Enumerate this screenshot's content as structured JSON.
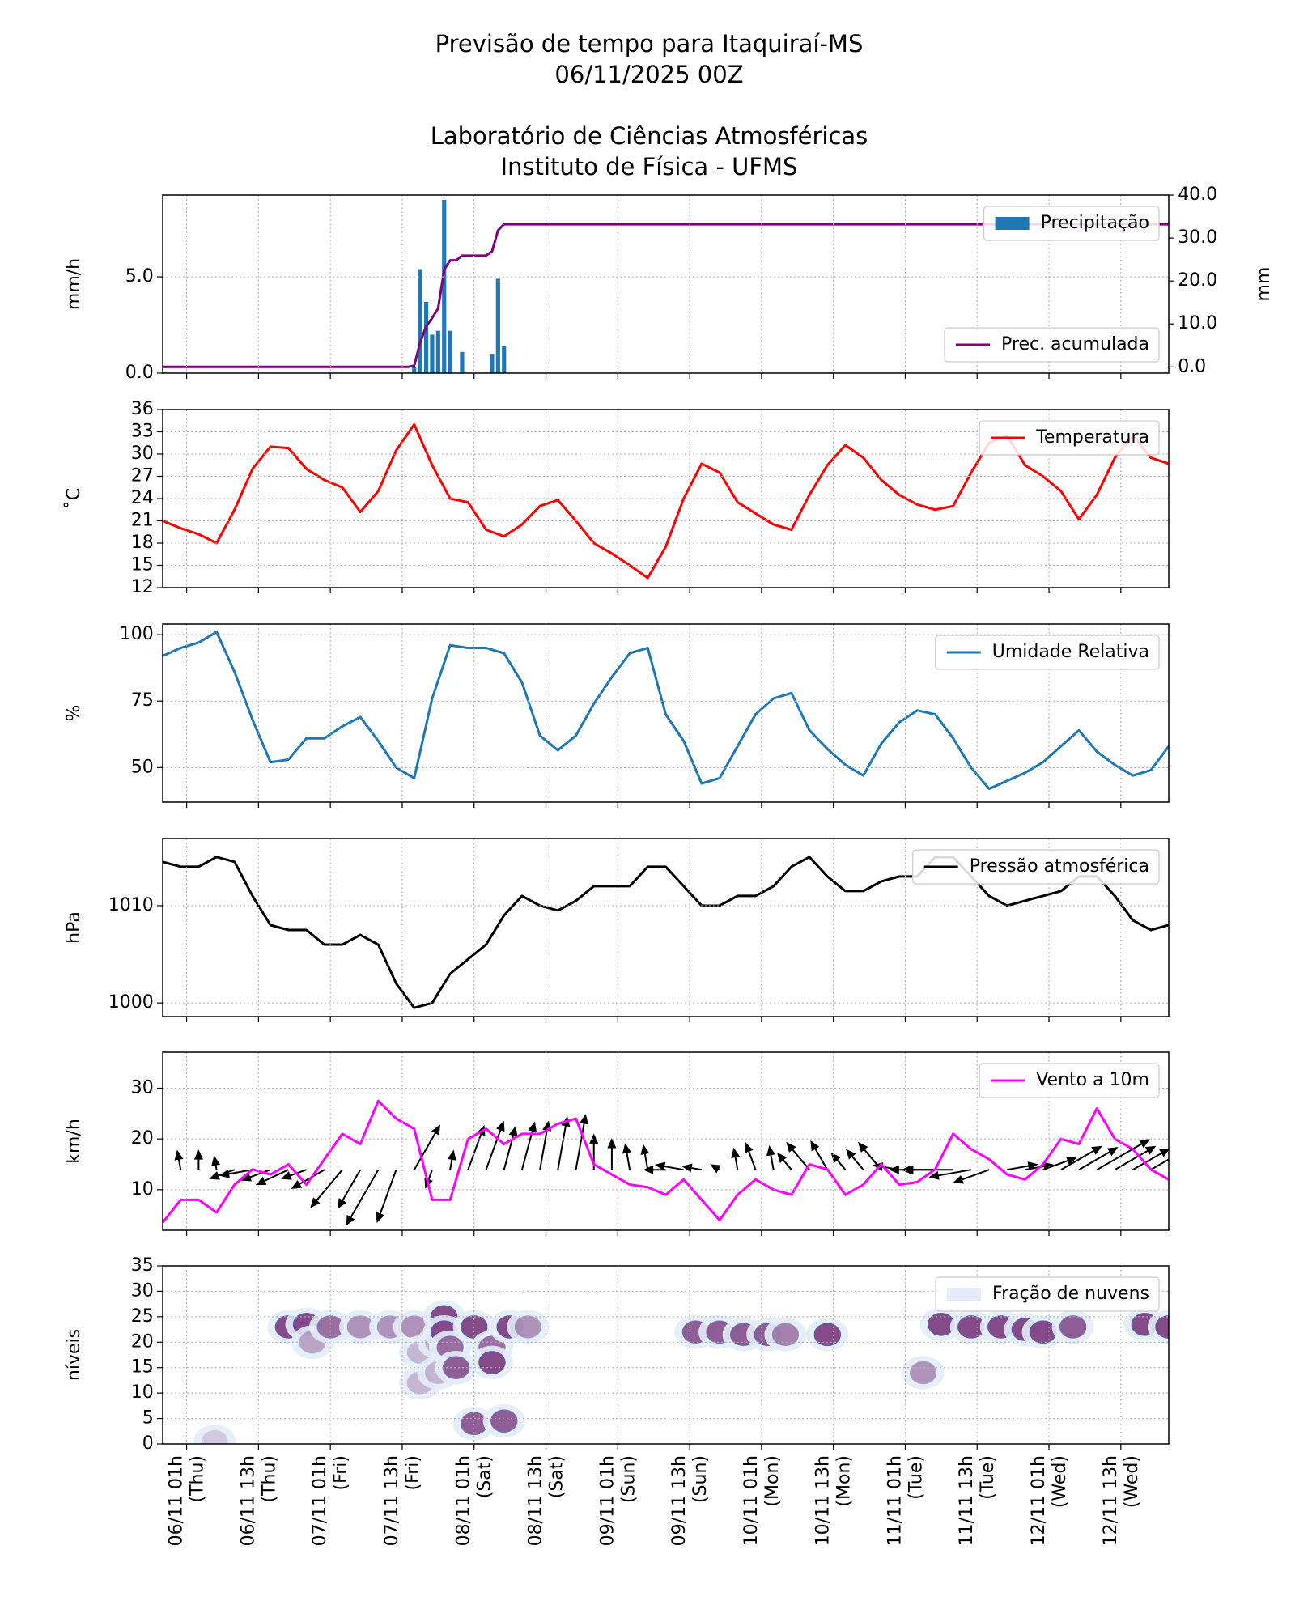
{
  "title": [
    "Previsão de tempo para Itaquiraí-MS",
    "06/11/2025 00Z",
    "Laboratório de Ciências Atmosféricas",
    "Instituto de Física - UFMS"
  ],
  "chart_data": [
    {
      "type": "combo",
      "ylabel": "mm/h",
      "y2label": "mm",
      "grid": true,
      "xlim": [
        0,
        168
      ],
      "xticks": [
        4,
        16,
        28,
        40,
        52,
        64,
        76,
        88,
        100,
        112,
        124,
        136,
        148,
        160
      ],
      "ylim": [
        0,
        9.25
      ],
      "yticks": [
        {
          "value": 0,
          "label": "0.0"
        },
        {
          "value": 5,
          "label": "5.0"
        }
      ],
      "y2lim": [
        -1.45,
        40
      ],
      "y2ticks": [
        {
          "value": 0,
          "label": "0.0"
        },
        {
          "value": 10,
          "label": "10.0"
        },
        {
          "value": 20,
          "label": "20.0"
        },
        {
          "value": 30,
          "label": "30.0"
        },
        {
          "value": 40,
          "label": "40.0"
        }
      ],
      "series": [
        {
          "name": "Precipitação",
          "type": "bar",
          "color": "#1f77b4",
          "legend": "upper right",
          "x": [
            42,
            43,
            44,
            45,
            46,
            47,
            48,
            50,
            55,
            56,
            57
          ],
          "values": [
            0.3,
            5.4,
            3.7,
            2.0,
            2.2,
            9.0,
            2.2,
            1.1,
            1.0,
            4.9,
            1.4
          ]
        },
        {
          "name": "Prec. acumulada",
          "type": "line",
          "axis": "y2",
          "color": "#800080",
          "legend": "lower right",
          "x": [
            0,
            41,
            42,
            43,
            44,
            45,
            46,
            47,
            48,
            49,
            50,
            53,
            54,
            55,
            56,
            57,
            168
          ],
          "values": [
            0,
            0,
            0.3,
            5.7,
            9.4,
            11.4,
            13.6,
            22.6,
            24.8,
            24.8,
            25.9,
            25.9,
            25.9,
            26.9,
            31.8,
            33.2,
            33.2
          ]
        }
      ]
    },
    {
      "type": "line",
      "ylabel": "˚C",
      "grid": true,
      "xlim": [
        0,
        168
      ],
      "xticks": [
        4,
        16,
        28,
        40,
        52,
        64,
        76,
        88,
        100,
        112,
        124,
        136,
        148,
        160
      ],
      "ylim": [
        12,
        36
      ],
      "yticks": [
        12,
        15,
        18,
        21,
        24,
        27,
        30,
        33,
        36
      ],
      "series": [
        {
          "name": "Temperatura",
          "type": "line",
          "color": "#ff0000",
          "legend": "upper right",
          "x": [
            0,
            3,
            6,
            9,
            12,
            15,
            18,
            21,
            24,
            27,
            30,
            33,
            36,
            39,
            42,
            45,
            48,
            51,
            54,
            57,
            60,
            63,
            66,
            69,
            72,
            75,
            78,
            81,
            84,
            87,
            90,
            93,
            96,
            99,
            102,
            105,
            108,
            111,
            114,
            117,
            120,
            123,
            126,
            129,
            132,
            135,
            138,
            141,
            144,
            147,
            150,
            153,
            156,
            159,
            162,
            165,
            168
          ],
          "values": [
            21,
            20,
            19.2,
            18,
            22.5,
            28,
            31,
            30.8,
            28,
            26.5,
            25.5,
            22.2,
            25,
            30.5,
            34,
            28.5,
            24,
            23.5,
            19.8,
            18.9,
            20.5,
            23,
            23.8,
            21,
            18,
            16.6,
            15,
            13.3,
            17.5,
            24,
            28.7,
            27.5,
            23.5,
            22,
            20.5,
            19.8,
            24.5,
            28.5,
            31.2,
            29.5,
            26.5,
            24.5,
            23.2,
            22.5,
            23,
            27.5,
            31.5,
            32.5,
            28.5,
            27,
            25,
            21.2,
            24.5,
            29.5,
            32.5,
            29.5,
            28.7
          ]
        }
      ]
    },
    {
      "type": "line",
      "ylabel": "%",
      "grid": true,
      "xlim": [
        0,
        168
      ],
      "xticks": [
        4,
        16,
        28,
        40,
        52,
        64,
        76,
        88,
        100,
        112,
        124,
        136,
        148,
        160
      ],
      "ylim": [
        37,
        104
      ],
      "yticks": [
        50,
        75,
        100
      ],
      "series": [
        {
          "name": "Umidade Relativa",
          "type": "line",
          "color": "#1f77b4",
          "legend": "upper right",
          "x": [
            0,
            3,
            6,
            9,
            12,
            15,
            18,
            21,
            24,
            27,
            30,
            33,
            36,
            39,
            42,
            45,
            48,
            51,
            54,
            57,
            60,
            63,
            66,
            69,
            72,
            75,
            78,
            81,
            84,
            87,
            90,
            93,
            96,
            99,
            102,
            105,
            108,
            111,
            114,
            117,
            120,
            123,
            126,
            129,
            132,
            135,
            138,
            141,
            144,
            147,
            150,
            153,
            156,
            159,
            162,
            165,
            168
          ],
          "values": [
            92,
            95,
            97,
            101,
            86,
            68,
            52,
            53,
            61,
            61,
            65.5,
            69,
            60,
            50,
            46,
            76,
            96,
            95,
            95,
            93,
            82,
            62,
            56.5,
            62,
            74,
            84,
            93,
            95,
            70,
            60,
            44,
            46,
            58,
            70,
            76,
            78,
            64,
            57,
            51,
            47,
            59,
            67,
            71.5,
            70,
            61,
            50,
            42,
            45,
            48,
            52,
            58,
            64,
            56,
            51,
            47,
            49,
            58
          ]
        }
      ]
    },
    {
      "type": "line",
      "ylabel": "hPa",
      "grid": true,
      "xlim": [
        0,
        168
      ],
      "xticks": [
        4,
        16,
        28,
        40,
        52,
        64,
        76,
        88,
        100,
        112,
        124,
        136,
        148,
        160
      ],
      "ylim": [
        998.6,
        1016.9
      ],
      "yticks": [
        1000,
        1010
      ],
      "series": [
        {
          "name": "Pressão atmosférica",
          "type": "line",
          "color": "#000000",
          "legend": "upper right",
          "x": [
            0,
            3,
            6,
            9,
            12,
            15,
            18,
            21,
            24,
            27,
            30,
            33,
            36,
            39,
            42,
            45,
            48,
            51,
            54,
            57,
            60,
            63,
            66,
            69,
            72,
            75,
            78,
            81,
            84,
            87,
            90,
            93,
            96,
            99,
            102,
            105,
            108,
            111,
            114,
            117,
            120,
            123,
            126,
            129,
            132,
            135,
            138,
            141,
            144,
            147,
            150,
            153,
            156,
            159,
            162,
            165,
            168
          ],
          "values": [
            1014.5,
            1014,
            1014,
            1015,
            1014.5,
            1011,
            1008,
            1007.5,
            1007.5,
            1006,
            1006,
            1007,
            1006,
            1002,
            999.5,
            1000,
            1003,
            1004.5,
            1006,
            1009,
            1011,
            1010,
            1009.5,
            1010.5,
            1012,
            1012,
            1012,
            1014,
            1014,
            1012,
            1010,
            1010,
            1011,
            1011,
            1012,
            1014,
            1015,
            1013,
            1011.5,
            1011.5,
            1012.5,
            1013,
            1013,
            1015,
            1015,
            1013,
            1011,
            1010,
            1010.5,
            1011,
            1011.5,
            1013,
            1013,
            1011,
            1008.5,
            1007.5,
            1008
          ]
        }
      ]
    },
    {
      "type": "quiver",
      "ylabel": "km/h",
      "grid": true,
      "xlim": [
        0,
        168
      ],
      "xticks": [
        4,
        16,
        28,
        40,
        52,
        64,
        76,
        88,
        100,
        112,
        124,
        136,
        148,
        160
      ],
      "ylim": [
        2,
        37.1
      ],
      "yticks": [
        10,
        20,
        30
      ],
      "series": [
        {
          "name": "Vento a 10m",
          "type": "line",
          "color": "#ff00ff",
          "arrow_color": "#000000",
          "legend": "upper right",
          "x": [
            0,
            3,
            6,
            9,
            12,
            15,
            18,
            21,
            24,
            27,
            30,
            33,
            36,
            39,
            42,
            45,
            48,
            51,
            54,
            57,
            60,
            63,
            66,
            69,
            72,
            75,
            78,
            81,
            84,
            87,
            90,
            93,
            96,
            99,
            102,
            105,
            108,
            111,
            114,
            117,
            120,
            123,
            126,
            129,
            132,
            135,
            138,
            141,
            144,
            147,
            150,
            153,
            156,
            159,
            162,
            165,
            168
          ],
          "values": [
            3.5,
            8,
            8,
            5.5,
            11,
            14,
            13,
            15,
            11,
            16,
            21,
            19,
            27.5,
            24,
            22,
            8,
            8,
            20,
            22,
            19,
            21,
            21,
            23,
            24,
            15,
            13,
            11,
            10.5,
            9,
            12,
            8,
            4,
            9,
            12,
            10,
            9,
            15,
            14,
            9,
            11,
            15,
            11,
            11.5,
            14,
            21,
            18,
            16,
            13,
            12,
            15,
            20,
            19,
            26,
            20,
            18,
            14,
            12
          ],
          "direction": [
            260,
            350,
            0,
            350,
            250,
            260,
            250,
            245,
            250,
            240,
            220,
            210,
            210,
            200,
            30,
            200,
            10,
            20,
            20,
            15,
            15,
            10,
            10,
            10,
            0,
            0,
            350,
            350,
            270,
            280,
            280,
            300,
            350,
            340,
            350,
            320,
            320,
            330,
            320,
            320,
            320,
            280,
            270,
            270,
            270,
            260,
            250,
            80,
            80,
            70,
            60,
            60,
            60,
            60,
            60,
            60,
            60
          ]
        }
      ]
    },
    {
      "type": "contour",
      "ylabel": "níveis",
      "grid": true,
      "xlim": [
        0,
        168
      ],
      "xticks": [
        {
          "value": 4,
          "label": [
            "06/11 01h",
            "(Thu)"
          ]
        },
        {
          "value": 16,
          "label": [
            "06/11 13h",
            "(Thu)"
          ]
        },
        {
          "value": 28,
          "label": [
            "07/11 01h",
            "(Fri)"
          ]
        },
        {
          "value": 40,
          "label": [
            "07/11 13h",
            "(Fri)"
          ]
        },
        {
          "value": 52,
          "label": [
            "08/11 01h",
            "(Sat)"
          ]
        },
        {
          "value": 64,
          "label": [
            "08/11 13h",
            "(Sat)"
          ]
        },
        {
          "value": 76,
          "label": [
            "09/11 01h",
            "(Sun)"
          ]
        },
        {
          "value": 88,
          "label": [
            "09/11 13h",
            "(Sun)"
          ]
        },
        {
          "value": 100,
          "label": [
            "10/11 01h",
            "(Mon)"
          ]
        },
        {
          "value": 112,
          "label": [
            "10/11 13h",
            "(Mon)"
          ]
        },
        {
          "value": 124,
          "label": [
            "11/11 01h",
            "(Tue)"
          ]
        },
        {
          "value": 136,
          "label": [
            "11/11 13h",
            "(Tue)"
          ]
        },
        {
          "value": 148,
          "label": [
            "12/11 01h",
            "(Wed)"
          ]
        },
        {
          "value": 160,
          "label": [
            "12/11 13h",
            "(Wed)"
          ]
        }
      ],
      "ylim": [
        0,
        35
      ],
      "yticks": [
        0,
        5,
        10,
        15,
        20,
        25,
        30,
        35
      ],
      "series": [
        {
          "name": "Fração de nuvens",
          "type": "cells",
          "colors": [
            "#e3ecf7",
            "#7b3a7e"
          ],
          "legend": "upper right",
          "x": [
            8.7,
            21,
            24,
            25,
            28,
            33,
            38,
            42,
            43,
            43,
            46,
            46,
            47,
            47,
            48,
            49,
            52,
            52,
            55,
            55,
            57,
            58,
            61,
            89,
            93,
            97,
            101,
            104,
            111,
            127,
            130,
            135,
            140,
            144,
            147,
            152,
            164,
            168
          ],
          "y": [
            0.5,
            23,
            23.5,
            20,
            23,
            23,
            23,
            23,
            18,
            12,
            20,
            14,
            25,
            22,
            19,
            15,
            23,
            4,
            19,
            16,
            4.5,
            23,
            23,
            22,
            22,
            21.5,
            21.5,
            21.5,
            21.5,
            14,
            23.5,
            23,
            23,
            22.5,
            22,
            23,
            23.5,
            23
          ],
          "values": [
            0.2,
            0.9,
            0.9,
            0.4,
            0.7,
            0.5,
            0.5,
            0.5,
            0.3,
            0.3,
            0.3,
            0.3,
            0.9,
            0.9,
            0.7,
            0.8,
            0.9,
            0.8,
            0.7,
            0.9,
            0.8,
            0.9,
            0.5,
            0.8,
            0.8,
            0.8,
            0.8,
            0.6,
            0.9,
            0.5,
            0.9,
            0.9,
            0.9,
            0.9,
            0.9,
            0.8,
            0.9,
            0.9
          ]
        }
      ]
    }
  ]
}
